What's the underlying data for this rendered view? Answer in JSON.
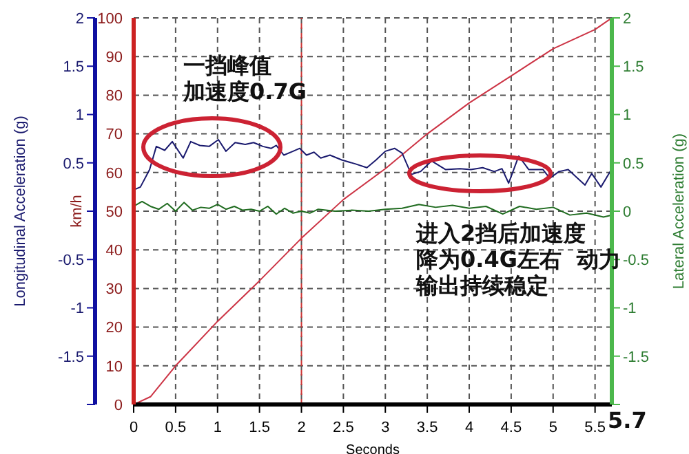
{
  "chart_data": {
    "type": "line",
    "xlabel": "Seconds",
    "ylabel": "km/h",
    "y2label": "Lateral Acceleration (g)",
    "y3label": "Longitudinal Acceleration (g)",
    "annotations": [
      "一挡峰值",
      "加速度0.7G",
      "进入2挡后加速度",
      "降为0.4G左右  动力",
      "输出持续稳定",
      "5.7"
    ],
    "xlim": [
      0,
      5.7
    ],
    "xticks": [
      0,
      0.5,
      1,
      1.5,
      2,
      2.5,
      3,
      3.5,
      4,
      4.5,
      5,
      5.5
    ],
    "ylim": [
      0,
      100
    ],
    "yticks": [
      0,
      10,
      20,
      30,
      40,
      50,
      60,
      70,
      80,
      90,
      100
    ],
    "y2lim": [
      -2,
      2
    ],
    "y2ticks": [
      {
        "value": -2,
        "label": null
      },
      -1.5,
      -1,
      -0.5,
      0,
      0.5,
      1,
      1.5,
      2
    ],
    "y3lim": [
      -2,
      2
    ],
    "y3ticks": [
      {
        "value": -2,
        "label": null
      },
      -1.5,
      -1,
      -0.5,
      {
        "value": 0,
        "label": null
      },
      0.5,
      1,
      1.5,
      2
    ],
    "grid": true,
    "legend": false,
    "marker": "none",
    "line_style": "solid",
    "ref_lines": [
      {
        "axis": "x",
        "value": 2,
        "color": "#cc3333",
        "line_style": "dashed"
      }
    ],
    "series": [
      {
        "type": "line",
        "axis": "y",
        "color": "#cc3344",
        "x": [
          0,
          0.2,
          0.5,
          1,
          1.5,
          2,
          2.5,
          3,
          3.5,
          4,
          4.5,
          5,
          5.5,
          5.7
        ],
        "values": [
          0,
          2,
          10,
          21.5,
          32,
          43,
          53,
          61,
          70,
          78,
          85,
          92,
          97,
          100
        ]
      },
      {
        "type": "line",
        "axis": "y3",
        "color": "#1a1a6e",
        "x": [
          0,
          0.08,
          0.19,
          0.27,
          0.37,
          0.46,
          0.59,
          0.68,
          0.79,
          0.9,
          1.01,
          1.1,
          1.21,
          1.33,
          1.43,
          1.54,
          1.64,
          1.7,
          1.79,
          1.9,
          1.98,
          2.06,
          2.15,
          2.23,
          2.34,
          2.48,
          2.64,
          2.78,
          2.89,
          3.0,
          3.11,
          3.2,
          3.31,
          3.42,
          3.55,
          3.72,
          3.89,
          4.02,
          4.16,
          4.3,
          4.39,
          4.47,
          4.59,
          4.71,
          4.88,
          4.96,
          5.07,
          5.18,
          5.38,
          5.46,
          5.57,
          5.68,
          5.7
        ],
        "values": [
          0.22,
          0.25,
          0.43,
          0.67,
          0.63,
          0.72,
          0.55,
          0.72,
          0.68,
          0.67,
          0.74,
          0.62,
          0.71,
          0.69,
          0.71,
          0.67,
          0.65,
          0.68,
          0.58,
          0.62,
          0.65,
          0.58,
          0.61,
          0.55,
          0.58,
          0.53,
          0.49,
          0.45,
          0.53,
          0.62,
          0.65,
          0.6,
          0.38,
          0.41,
          0.52,
          0.43,
          0.44,
          0.43,
          0.45,
          0.41,
          0.44,
          0.29,
          0.57,
          0.43,
          0.43,
          0.34,
          0.41,
          0.43,
          0.27,
          0.39,
          0.25,
          0.41,
          0.4
        ]
      },
      {
        "type": "line",
        "axis": "y2",
        "color": "#1f6b1f",
        "x": [
          0,
          0.1,
          0.2,
          0.3,
          0.4,
          0.5,
          0.6,
          0.7,
          0.8,
          0.9,
          1.0,
          1.1,
          1.2,
          1.3,
          1.4,
          1.5,
          1.6,
          1.7,
          1.8,
          1.9,
          2.0,
          2.1,
          2.2,
          2.4,
          2.6,
          2.8,
          3.0,
          3.2,
          3.4,
          3.6,
          3.8,
          4.0,
          4.2,
          4.4,
          4.6,
          4.8,
          5.0,
          5.2,
          5.4,
          5.6,
          5.7
        ],
        "values": [
          0.05,
          0.1,
          0.05,
          0.02,
          0.08,
          0.0,
          0.09,
          0.01,
          0.04,
          0.03,
          0.07,
          0.02,
          0.05,
          0.01,
          0.02,
          0.0,
          0.05,
          -0.03,
          0.03,
          -0.02,
          0.0,
          -0.02,
          0.02,
          0.0,
          0.01,
          0.0,
          0.02,
          0.03,
          0.07,
          0.04,
          0.06,
          0.03,
          0.05,
          -0.03,
          0.05,
          0.02,
          0.04,
          -0.04,
          -0.02,
          -0.06,
          -0.04
        ]
      }
    ]
  }
}
